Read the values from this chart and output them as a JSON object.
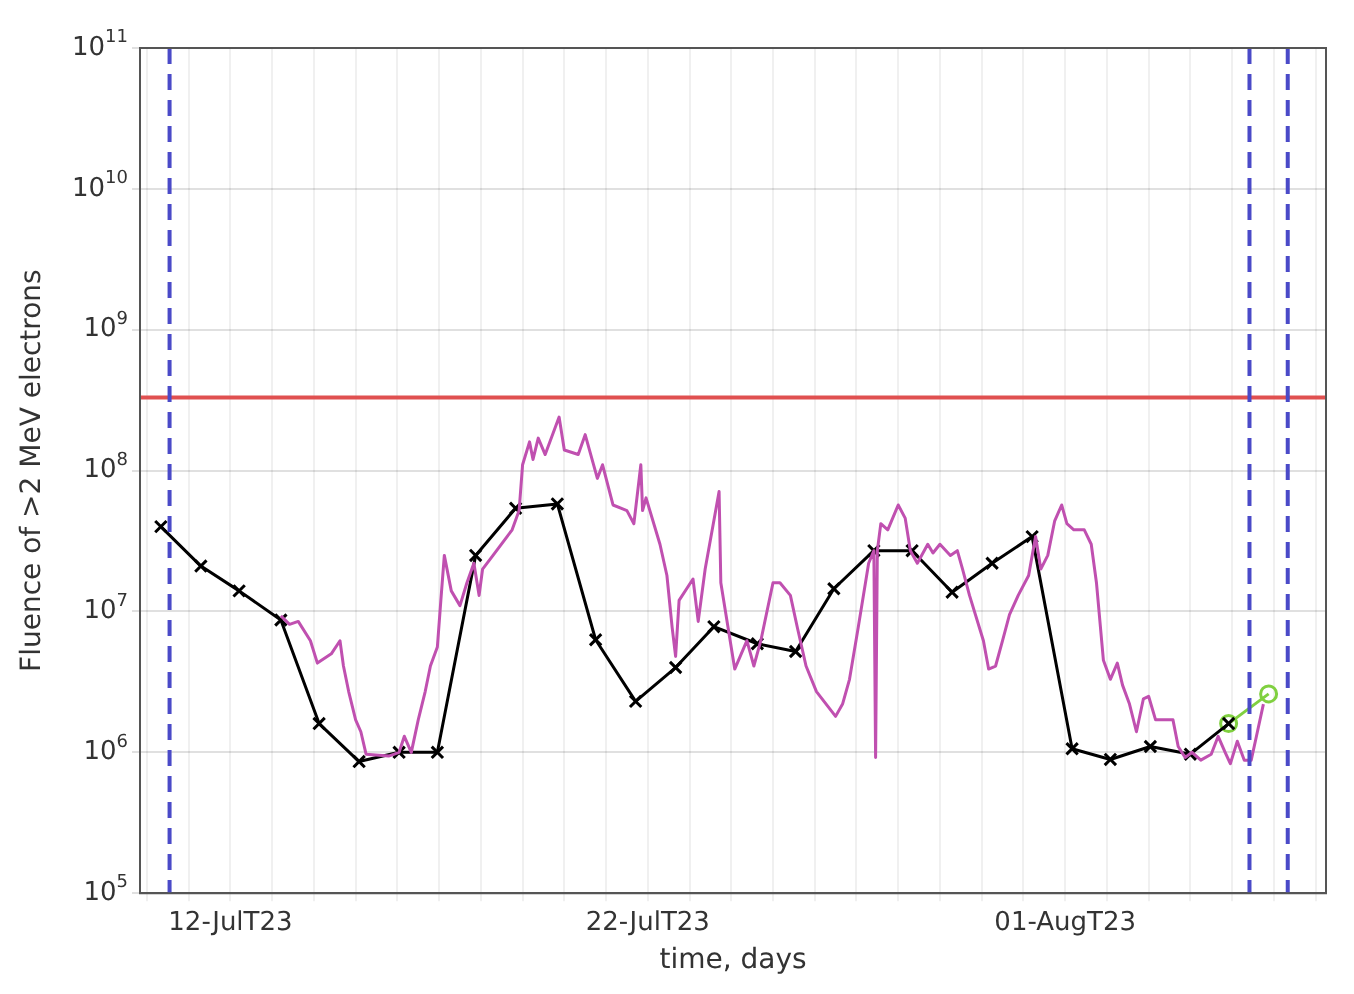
{
  "chart_data": {
    "type": "line",
    "xlabel": "time, days",
    "ylabel": "Fluence of >2 MeV electrons",
    "log": "y",
    "grid": true,
    "legend": false,
    "xlim": [
      "--07-09T20:00",
      "--08-07T06:00"
    ],
    "ylim": [
      100000,
      100000000000
    ],
    "yticks": [
      {
        "value": 100000,
        "label": "10$^{5}$"
      },
      {
        "value": 1000000,
        "label": "10$^{6}$"
      },
      {
        "value": 10000000,
        "label": "10$^{7}$"
      },
      {
        "value": 100000000,
        "label": "10$^{8}$"
      },
      {
        "value": 1000000000,
        "label": "10$^{9}$"
      },
      {
        "value": 10000000000,
        "label": "10$^{10}$"
      },
      {
        "value": 100000000000,
        "label": "10$^{11}$"
      }
    ],
    "xticks": [
      {
        "value": "--07-10T00:00",
        "label": null
      },
      {
        "value": "--07-11T00:00",
        "label": null
      },
      {
        "value": "--07-12T00:00",
        "label": "12-JulT23"
      },
      {
        "value": "--07-13T00:00",
        "label": null
      },
      {
        "value": "--07-14T00:00",
        "label": null
      },
      {
        "value": "--07-15T00:00",
        "label": null
      },
      {
        "value": "--07-16T00:00",
        "label": null
      },
      {
        "value": "--07-17T00:00",
        "label": null
      },
      {
        "value": "--07-18T00:00",
        "label": null
      },
      {
        "value": "--07-19T00:00",
        "label": null
      },
      {
        "value": "--07-20T00:00",
        "label": null
      },
      {
        "value": "--07-21T00:00",
        "label": null
      },
      {
        "value": "--07-22T00:00",
        "label": "22-JulT23"
      },
      {
        "value": "--07-23T00:00",
        "label": null
      },
      {
        "value": "--07-24T00:00",
        "label": null
      },
      {
        "value": "--07-25T00:00",
        "label": null
      },
      {
        "value": "--07-26T00:00",
        "label": null
      },
      {
        "value": "--07-27T00:00",
        "label": null
      },
      {
        "value": "--07-28T00:00",
        "label": null
      },
      {
        "value": "--07-29T00:00",
        "label": null
      },
      {
        "value": "--07-30T00:00",
        "label": null
      },
      {
        "value": "--07-31T00:00",
        "label": null
      },
      {
        "value": "--08-01T00:00",
        "label": "01-AugT23"
      },
      {
        "value": "--08-02T00:00",
        "label": null
      },
      {
        "value": "--08-03T00:00",
        "label": null
      },
      {
        "value": "--08-04T00:00",
        "label": null
      },
      {
        "value": "--08-05T00:00",
        "label": null
      },
      {
        "value": "--08-06T00:00",
        "label": null
      },
      {
        "value": "--08-07T00:00",
        "label": null
      }
    ],
    "ref_lines": [
      {
        "axis": "y",
        "value": 330000000,
        "color": "#e05050",
        "line_style": "solid"
      },
      {
        "axis": "x",
        "value": "--07-10T13:00",
        "color": "#4a4ac8",
        "line_style": "dashed"
      },
      {
        "axis": "x",
        "value": "--08-05T10:00",
        "color": "#4a4ac8",
        "line_style": "dashed"
      },
      {
        "axis": "x",
        "value": "--08-06T08:00",
        "color": "#4a4ac8",
        "line_style": "dashed"
      }
    ],
    "series": [
      {
        "color": "#c050b0",
        "marker": "none",
        "line_style": "solid",
        "x": [
          "--07-13T05:00",
          "--07-13T10:00",
          "--07-13T15:00",
          "--07-13T22:00",
          "--07-14T02:00",
          "--07-14T10:00",
          "--07-14T15:00",
          "--07-14T17:00",
          "--07-14T20:00",
          "--07-15T00:00",
          "--07-15T03:00",
          "--07-15T06:00",
          "--07-15T19:00",
          "--07-16T01:00",
          "--07-16T04:00",
          "--07-16T08:00",
          "--07-16T12:00",
          "--07-16T16:00",
          "--07-16T19:00",
          "--07-16T23:00",
          "--07-17T01:00",
          "--07-17T03:00",
          "--07-17T07:00",
          "--07-17T12:00",
          "--07-17T16:00",
          "--07-17T20:00",
          "--07-17T23:00",
          "--07-18T01:00",
          "--07-18T07:00",
          "--07-18T18:00",
          "--07-18T22:00",
          "--07-19T00:00",
          "--07-19T04:00",
          "--07-19T06:00",
          "--07-19T09:00",
          "--07-19T13:00",
          "--07-19T21:00",
          "--07-20T00:00",
          "--07-20T08:00",
          "--07-20T12:00",
          "--07-20T19:00",
          "--07-20T22:00",
          "--07-21T04:00",
          "--07-21T12:00",
          "--07-21T16:00",
          "--07-21T20:00",
          "--07-21T21:00",
          "--07-21T23:00",
          "--07-22T07:00",
          "--07-22T11:00",
          "--07-22T14:00",
          "--07-22T16:00",
          "--07-22T18:00",
          "--07-23T02:00",
          "--07-23T05:00",
          "--07-23T09:00",
          "--07-23T17:00",
          "--07-23T18:00",
          "--07-24T02:00",
          "--07-24T09:00",
          "--07-24T13:00",
          "--07-24T17:00",
          "--07-25T00:00",
          "--07-25T04:00",
          "--07-25T10:00",
          "--07-25T14:00",
          "--07-25T19:00",
          "--07-26T01:00",
          "--07-26T12:00",
          "--07-26T16:00",
          "--07-26T20:00",
          "--07-27T01:00",
          "--07-27T07:00",
          "--07-27T10:00",
          "--07-27T11:00",
          "--07-27T12:00",
          "--07-27T14:00",
          "--07-27T18:00",
          "--07-28T00:00",
          "--07-28T04:00",
          "--07-28T07:00",
          "--07-28T11:00",
          "--07-28T17:00",
          "--07-28T20:00",
          "--07-29T00:00",
          "--07-29T06:00",
          "--07-29T10:00",
          "--07-29T13:00",
          "--07-29T17:00",
          "--07-30T01:00",
          "--07-30T04:00",
          "--07-30T08:00",
          "--07-30T12:00",
          "--07-30T16:00",
          "--07-30T21:00",
          "--07-31T03:00",
          "--07-31T07:00",
          "--07-31T10:00",
          "--07-31T14:00",
          "--07-31T18:00",
          "--07-31T22:00",
          "--08-01T01:00",
          "--08-01T05:00",
          "--08-01T11:00",
          "--08-01T15:00",
          "--08-01T18:00",
          "--08-01T22:00",
          "--08-02T02:00",
          "--08-02T06:00",
          "--08-02T09:00",
          "--08-02T13:00",
          "--08-02T17:00",
          "--08-02T21:00",
          "--08-03T00:00",
          "--08-03T04:00",
          "--08-03T08:00",
          "--08-03T14:00",
          "--08-03T17:00",
          "--08-03T21:00",
          "--08-04T01:00",
          "--08-04T06:00",
          "--08-04T12:00",
          "--08-04T16:00",
          "--08-04T20:00",
          "--08-04T23:00",
          "--08-05T03:00",
          "--08-05T07:00",
          "--08-05T11:00",
          "--08-05T14:00",
          "--08-05T18:00"
        ],
        "values": [
          9300000,
          8100000,
          8500000,
          6200000,
          4300000,
          5000000,
          6200000,
          4100000,
          2700000,
          1700000,
          1400000,
          970000,
          940000,
          1000000,
          1300000,
          1000000,
          1700000,
          2700000,
          4100000,
          5600000,
          12000000,
          25000000,
          14000000,
          11000000,
          16000000,
          22000000,
          13000000,
          20000000,
          25000000,
          38000000,
          52000000,
          110000000,
          160000000,
          120000000,
          170000000,
          130000000,
          240000000,
          140000000,
          130000000,
          180000000,
          88000000,
          110000000,
          57000000,
          52000000,
          42000000,
          110000000,
          52000000,
          64000000,
          30000000,
          18000000,
          7700000,
          4800000,
          12000000,
          17000000,
          8500000,
          20000000,
          71000000,
          16000000,
          3900000,
          6200000,
          4100000,
          6200000,
          16000000,
          16000000,
          13000000,
          7700000,
          4100000,
          2700000,
          1800000,
          2200000,
          3300000,
          7700000,
          22000000,
          27000000,
          920000,
          27000000,
          42000000,
          38000000,
          57000000,
          46000000,
          27000000,
          22000000,
          30000000,
          26000000,
          30000000,
          25000000,
          27000000,
          20000000,
          13000000,
          6200000,
          3900000,
          4100000,
          6200000,
          9500000,
          13000000,
          18000000,
          34000000,
          20000000,
          25000000,
          44000000,
          57000000,
          42000000,
          38000000,
          38000000,
          30000000,
          16000000,
          4500000,
          3300000,
          4300000,
          3000000,
          2200000,
          1400000,
          2400000,
          2500000,
          1700000,
          1700000,
          1700000,
          1100000,
          920000,
          1000000,
          880000,
          970000,
          1300000,
          1000000,
          830000,
          1200000,
          880000,
          880000,
          1300000,
          2200000
        ]
      },
      {
        "color": "#000000",
        "marker": "cross",
        "line_style": "solid",
        "x": [
          "--07-10T08:00",
          "--07-11T07:00",
          "--07-12T05:00",
          "--07-13T05:00",
          "--07-14T03:00",
          "--07-15T02:00",
          "--07-16T01:00",
          "--07-16T23:00",
          "--07-17T21:00",
          "--07-18T20:00",
          "--07-19T20:00",
          "--07-20T18:00",
          "--07-21T17:00",
          "--07-22T16:00",
          "--07-23T14:00",
          "--07-24T15:00",
          "--07-25T13:00",
          "--07-26T11:00",
          "--07-27T10:00",
          "--07-28T08:00",
          "--07-29T07:00",
          "--07-30T06:00",
          "--07-31T05:00",
          "--08-01T04:00",
          "--08-02T02:00",
          "--08-03T01:00",
          "--08-04T00:00",
          "--08-04T22:00"
        ],
        "values": [
          40000000,
          21000000,
          14000000,
          8700000,
          1600000,
          860000,
          1000000,
          1000000,
          25000000,
          54000000,
          58000000,
          6300000,
          2300000,
          4000000,
          7800000,
          5900000,
          5200000,
          14500000,
          27000000,
          27000000,
          13700000,
          22000000,
          34000000,
          1060000,
          890000,
          1100000,
          970000,
          1600000
        ]
      },
      {
        "color": "#80d040",
        "marker": "circle",
        "line_style": "solid",
        "x": [
          "--08-04T22:00",
          "--08-05T21:00"
        ],
        "values": [
          1600000,
          2600000
        ]
      }
    ]
  }
}
